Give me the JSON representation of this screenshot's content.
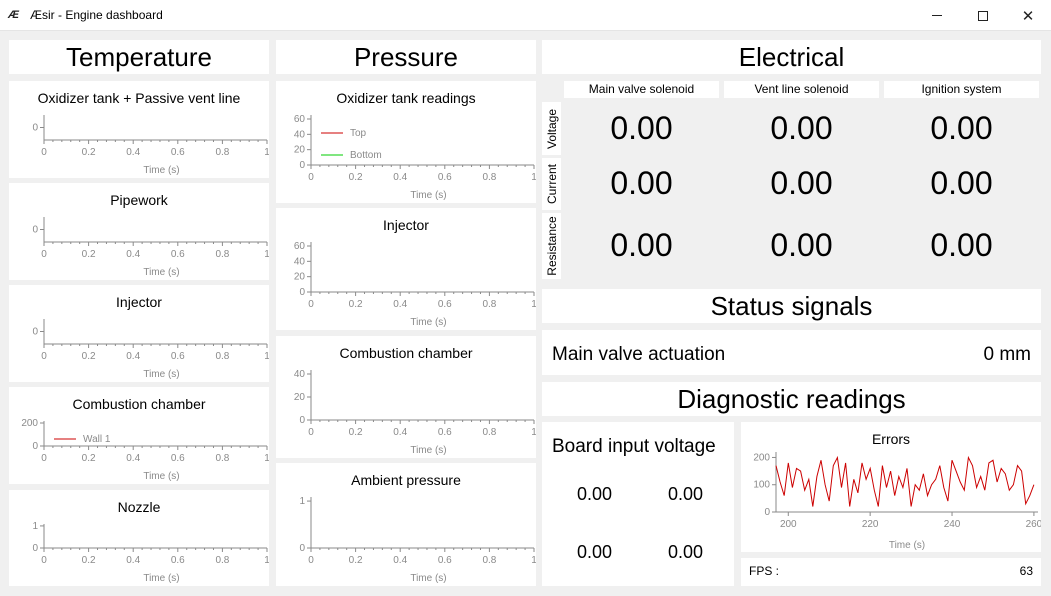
{
  "window": {
    "icon_text": "Æ",
    "title": "Æsir - Engine dashboard",
    "minimize_icon": "minimize-icon",
    "maximize_icon": "maximize-icon",
    "close_icon": "close-icon",
    "close_glyph": "✕"
  },
  "temperature": {
    "header": "Temperature",
    "plots": [
      {
        "title": "Oxidizer tank + Passive vent line",
        "xlabel": "Time (s)",
        "xticks": [
          "0",
          "0.2",
          "0.4",
          "0.6",
          "0.8",
          "1"
        ],
        "yticks": [
          "0"
        ],
        "ymax": 1,
        "legend": []
      },
      {
        "title": "Pipework",
        "xlabel": "Time (s)",
        "xticks": [
          "0",
          "0.2",
          "0.4",
          "0.6",
          "0.8",
          "1"
        ],
        "yticks": [
          "0"
        ],
        "ymax": 1,
        "legend": []
      },
      {
        "title": "Injector",
        "xlabel": "Time (s)",
        "xticks": [
          "0",
          "0.2",
          "0.4",
          "0.6",
          "0.8",
          "1"
        ],
        "yticks": [
          "0"
        ],
        "ymax": 1,
        "legend": []
      },
      {
        "title": "Combustion chamber",
        "xlabel": "Time (s)",
        "xticks": [
          "0",
          "0.2",
          "0.4",
          "0.6",
          "0.8",
          "1"
        ],
        "yticks": [
          "0",
          "200"
        ],
        "ymax": 200,
        "legend": [
          {
            "name": "Wall 1",
            "color": "#cc0000"
          }
        ]
      },
      {
        "title": "Nozzle",
        "xlabel": "Time (s)",
        "xticks": [
          "0",
          "0.2",
          "0.4",
          "0.6",
          "0.8",
          "1"
        ],
        "yticks": [
          "0",
          "1"
        ],
        "ymax": 1,
        "legend": []
      }
    ]
  },
  "pressure": {
    "header": "Pressure",
    "plots": [
      {
        "title": "Oxidizer tank readings",
        "xlabel": "Time (s)",
        "xticks": [
          "0",
          "0.2",
          "0.4",
          "0.6",
          "0.8",
          "1"
        ],
        "yticks": [
          "0",
          "20",
          "40",
          "60"
        ],
        "ymax": 60,
        "legend": [
          {
            "name": "Top",
            "color": "#cc0000"
          },
          {
            "name": "Bottom",
            "color": "#00cc00"
          }
        ]
      },
      {
        "title": "Injector",
        "xlabel": "Time (s)",
        "xticks": [
          "0",
          "0.2",
          "0.4",
          "0.6",
          "0.8",
          "1"
        ],
        "yticks": [
          "0",
          "20",
          "40",
          "60"
        ],
        "ymax": 60,
        "legend": []
      },
      {
        "title": "Combustion chamber",
        "xlabel": "Time (s)",
        "xticks": [
          "0",
          "0.2",
          "0.4",
          "0.6",
          "0.8",
          "1"
        ],
        "yticks": [
          "0",
          "20",
          "40"
        ],
        "ymax": 40,
        "legend": []
      },
      {
        "title": "Ambient pressure",
        "xlabel": "Time (s)",
        "xticks": [
          "0",
          "0.2",
          "0.4",
          "0.6",
          "0.8",
          "1"
        ],
        "yticks": [
          "0",
          "1"
        ],
        "ymax": 1,
        "legend": []
      }
    ]
  },
  "electrical": {
    "header": "Electrical",
    "columns": [
      "Main valve solenoid",
      "Vent line solenoid",
      "Ignition system"
    ],
    "rows": [
      {
        "label": "Voltage",
        "values": [
          "0.00",
          "0.00",
          "0.00"
        ]
      },
      {
        "label": "Current",
        "values": [
          "0.00",
          "0.00",
          "0.00"
        ]
      },
      {
        "label": "Resistance",
        "values": [
          "0.00",
          "0.00",
          "0.00"
        ]
      }
    ]
  },
  "status": {
    "header": "Status signals",
    "label": "Main valve actuation",
    "value": "0 mm"
  },
  "diagnostics": {
    "header": "Diagnostic readings",
    "board_title": "Board input voltage",
    "board_values": [
      "0.00",
      "0.00",
      "0.00",
      "0.00"
    ],
    "errors_chart": {
      "title": "Errors",
      "xlabel": "Time (s)",
      "xticks": [
        "200",
        "220",
        "240",
        "260"
      ],
      "yticks": [
        "0",
        "100",
        "200"
      ],
      "xlim": [
        197,
        261
      ],
      "ylim": [
        0,
        220
      ],
      "line_color": "#cc0000"
    },
    "fps_label": "FPS :",
    "fps_value": "63"
  },
  "chart_data": [
    {
      "type": "line",
      "title": "Errors",
      "xlabel": "Time (s)",
      "ylabel": "",
      "xlim": [
        197,
        261
      ],
      "ylim": [
        0,
        220
      ],
      "grid": false,
      "series": [
        {
          "x": [
            197,
            198,
            199,
            200,
            201,
            202,
            203,
            204,
            205,
            206,
            207,
            208,
            209,
            210,
            211,
            212,
            213,
            214,
            215,
            216,
            217,
            218,
            219,
            220,
            221,
            222,
            223,
            224,
            225,
            226,
            227,
            228,
            229,
            230,
            231,
            232,
            233,
            234,
            235,
            236,
            237,
            238,
            239,
            240,
            241,
            242,
            243,
            244,
            245,
            246,
            247,
            248,
            249,
            250,
            251,
            252,
            253,
            254,
            255,
            256,
            257,
            258,
            259,
            260
          ],
          "values": [
            170,
            110,
            60,
            180,
            90,
            160,
            150,
            80,
            120,
            20,
            130,
            190,
            100,
            40,
            170,
            200,
            90,
            180,
            20,
            120,
            70,
            180,
            120,
            160,
            80,
            20,
            170,
            90,
            150,
            60,
            130,
            90,
            160,
            20,
            100,
            80,
            140,
            60,
            100,
            120,
            170,
            90,
            40,
            190,
            150,
            110,
            80,
            200,
            170,
            90,
            130,
            80,
            180,
            190,
            110,
            160,
            140,
            80,
            100,
            170,
            150,
            30,
            60,
            100
          ]
        }
      ]
    }
  ]
}
